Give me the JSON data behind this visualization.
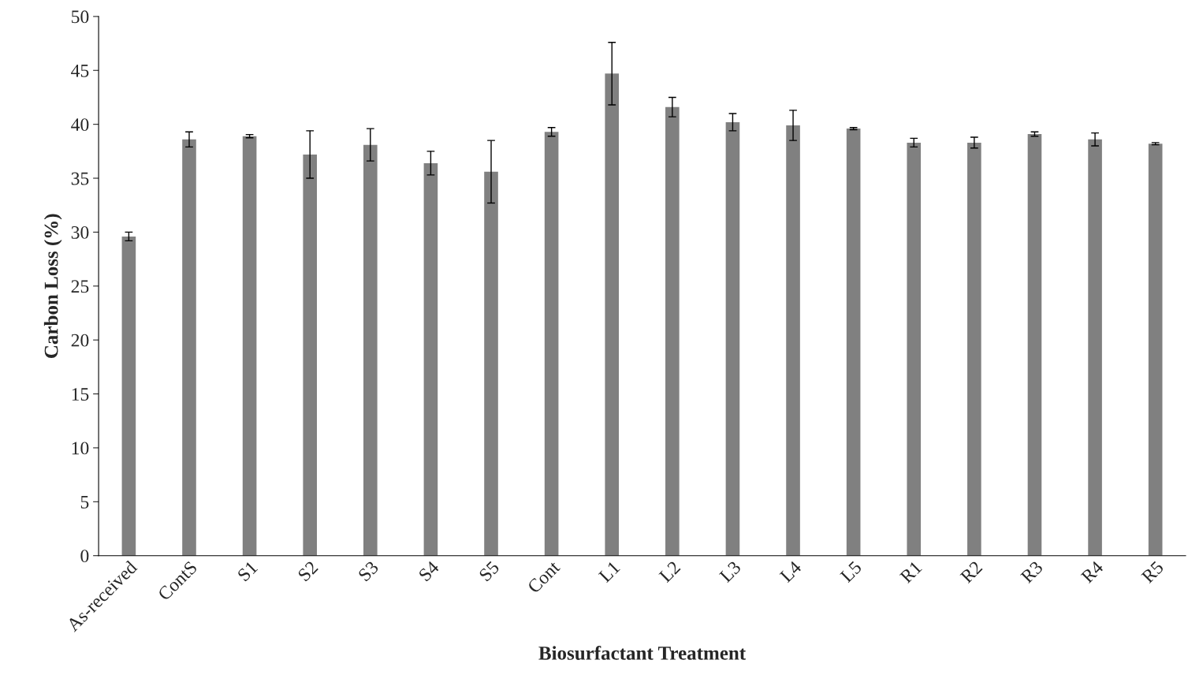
{
  "chart_data": {
    "type": "bar",
    "xlabel": "Biosurfactant Treatment",
    "ylabel": "Carbon Loss (%)",
    "categories": [
      "As-received",
      "ContS",
      "S1",
      "S2",
      "S3",
      "S4",
      "S5",
      "Cont",
      "L1",
      "L2",
      "L3",
      "L4",
      "L5",
      "R1",
      "R2",
      "R3",
      "R4",
      "R5"
    ],
    "values": [
      29.6,
      38.6,
      38.9,
      37.2,
      38.1,
      36.4,
      35.6,
      39.3,
      44.7,
      41.6,
      40.2,
      39.9,
      39.6,
      38.3,
      38.3,
      39.1,
      38.6,
      38.2
    ],
    "errors": [
      0.4,
      0.7,
      0.15,
      2.2,
      1.5,
      1.1,
      2.9,
      0.4,
      2.9,
      0.9,
      0.8,
      1.4,
      0.1,
      0.4,
      0.5,
      0.2,
      0.6,
      0.1
    ],
    "color": "#808080",
    "ylim": [
      0,
      50
    ],
    "yticks": [
      0,
      5,
      10,
      15,
      20,
      25,
      30,
      35,
      40,
      45,
      50
    ],
    "grid": false,
    "legend": false
  }
}
